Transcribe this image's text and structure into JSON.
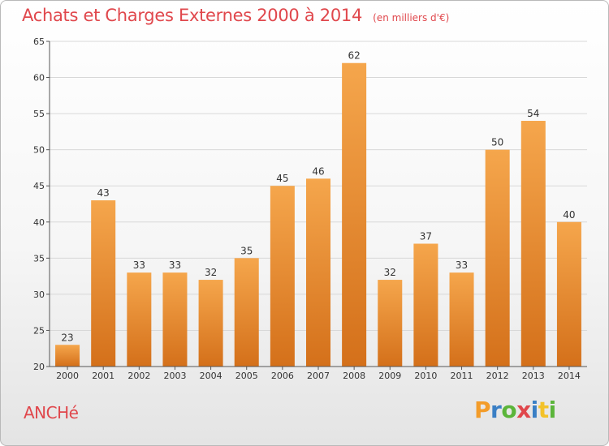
{
  "header": {
    "title": "Achats et Charges Externes 2000 à 2014",
    "subtitle": "(en milliers d'€)"
  },
  "footer": {
    "commune": "ANCHé",
    "logo_letters": [
      "P",
      "r",
      "o",
      "x",
      "i",
      "t",
      "i"
    ],
    "logo_colors": [
      "#f39c2a",
      "#3a7fc5",
      "#5bb53a",
      "#e0474c",
      "#3a7fc5",
      "#f3c22a",
      "#5bb53a"
    ]
  },
  "colors": {
    "bar_light": "#f5a64c",
    "bar_dark": "#d4701a",
    "accent": "#e0474c"
  },
  "chart_data": {
    "type": "bar",
    "categories": [
      "2000",
      "2001",
      "2002",
      "2003",
      "2004",
      "2005",
      "2006",
      "2007",
      "2008",
      "2009",
      "2010",
      "2011",
      "2012",
      "2013",
      "2014"
    ],
    "values": [
      23,
      43,
      33,
      33,
      32,
      35,
      45,
      46,
      62,
      32,
      37,
      33,
      50,
      54,
      40
    ],
    "ylim": [
      20,
      65
    ],
    "yticks": [
      20,
      25,
      30,
      35,
      40,
      45,
      50,
      55,
      60,
      65
    ],
    "grid": true,
    "data_labels": true
  }
}
